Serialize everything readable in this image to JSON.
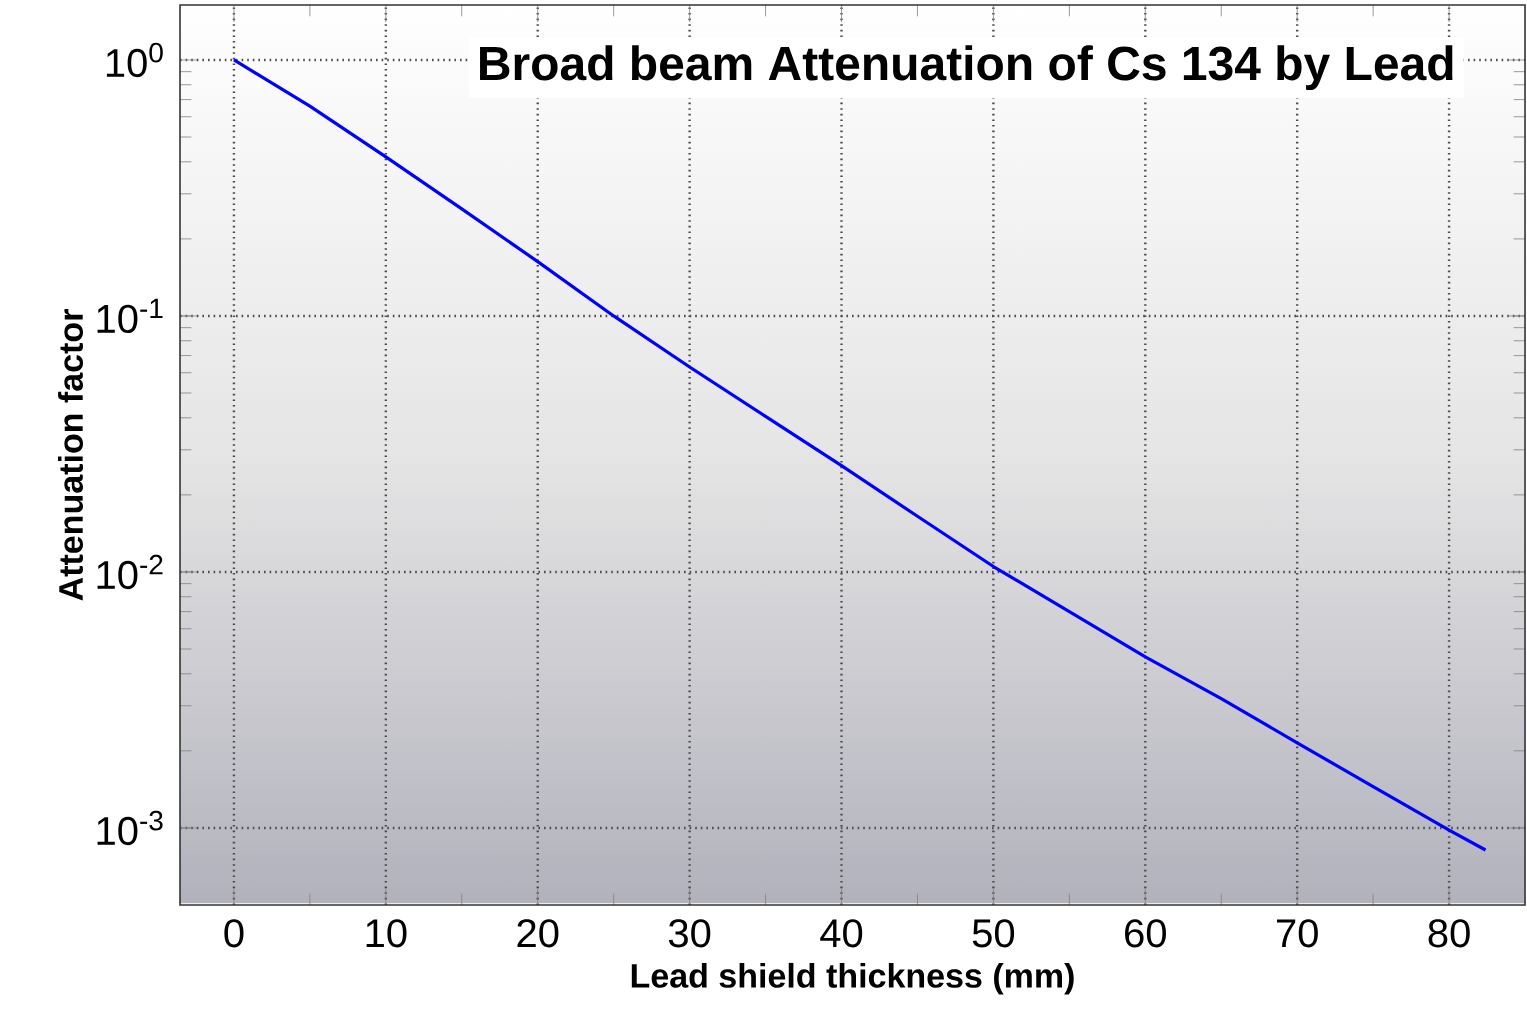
{
  "chart_data": {
    "type": "line",
    "title": "Broad beam Attenuation of Cs 134 by Lead",
    "xlabel": "Lead shield thickness (mm)",
    "ylabel": "Attenuation factor",
    "x": [
      0,
      5,
      10,
      15,
      20,
      25,
      30,
      35,
      40,
      45,
      50,
      55,
      60,
      65,
      70,
      75,
      80,
      82.4
    ],
    "series": [
      {
        "color": "#0000ff",
        "values": [
          1.0,
          0.66,
          0.418,
          0.262,
          0.163,
          0.1,
          0.0632,
          0.0405,
          0.026,
          0.0165,
          0.0105,
          0.007,
          0.00466,
          0.0032,
          0.00215,
          0.00145,
          0.00098,
          0.00082
        ]
      }
    ],
    "log": "y",
    "grid": true,
    "line_style": "solid",
    "marker": "none",
    "xlim": [
      -3.55,
      85
    ],
    "ylim": [
      0.0005,
      1.64
    ],
    "xticks": [
      0,
      10,
      20,
      30,
      40,
      50,
      60,
      70,
      80
    ],
    "yticks": [
      {
        "value": 0.001,
        "label": "10$^{-3}$"
      },
      {
        "value": 0.01,
        "label": "10$^{-2}$"
      },
      {
        "value": 0.1,
        "label": "10$^{-1}$"
      },
      {
        "value": 1,
        "label": "10$^{0}$"
      }
    ]
  }
}
